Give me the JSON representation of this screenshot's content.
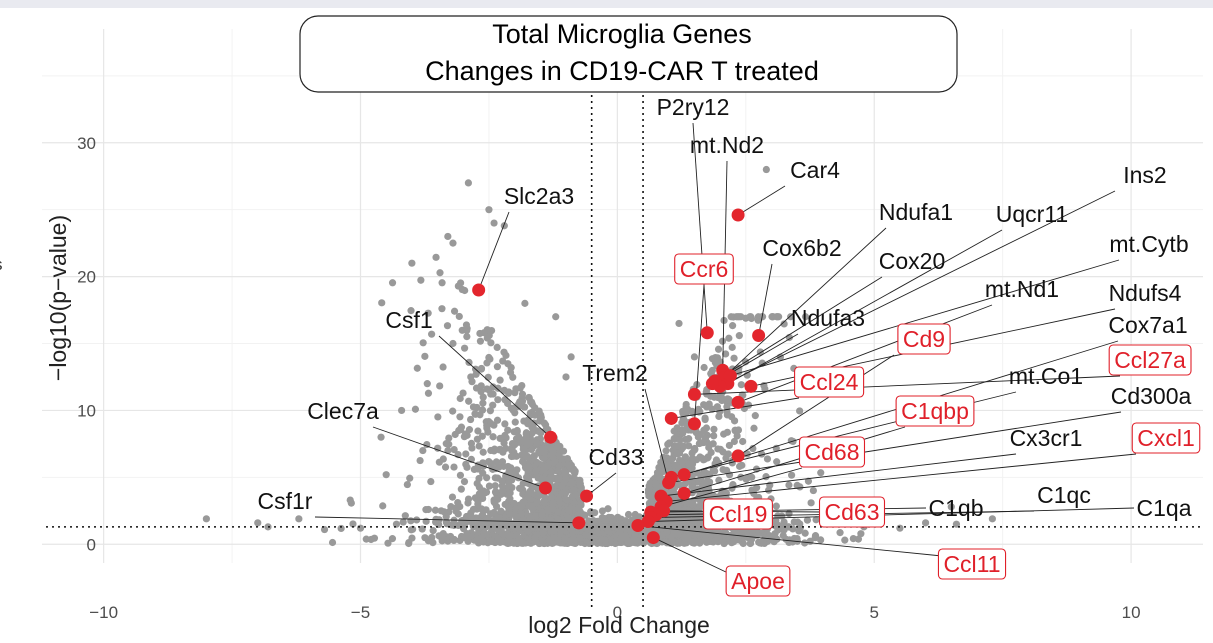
{
  "chart_data": {
    "type": "scatter",
    "title_line1": "Total Microglia Genes",
    "title_line2": "Changes in CD19-CAR T treated",
    "xlabel": "log2 Fold Change",
    "ylabel": "−log10(p−value)",
    "xlim": [
      -11.2,
      11.4
    ],
    "ylim": [
      -1.4,
      38.5
    ],
    "x_ticks": [
      -10,
      -5,
      0,
      5,
      10
    ],
    "x_tick_labels": [
      "−10",
      "−5",
      "0",
      "5",
      "10"
    ],
    "y_ticks": [
      0,
      10,
      20,
      30
    ],
    "y_tick_labels": [
      "0",
      "10",
      "20",
      "30"
    ],
    "grid": true,
    "thresholds": {
      "log2fc": [
        -0.5,
        0.5
      ],
      "neg_log10_p": 1.3
    },
    "colors": {
      "background_points": "#999999",
      "highlight_points": "#e3262d",
      "boxed_label": "#e0202a"
    },
    "left_edge_stub": "s",
    "highlighted_genes": [
      {
        "gene": "Slc2a3",
        "x": -2.7,
        "y": 19.0,
        "boxed": false
      },
      {
        "gene": "Csf1",
        "x": -1.3,
        "y": 8.0,
        "boxed": false
      },
      {
        "gene": "Clec7a",
        "x": -1.4,
        "y": 4.2,
        "boxed": false
      },
      {
        "gene": "Cd33",
        "x": -0.6,
        "y": 3.6,
        "boxed": false
      },
      {
        "gene": "Csf1r",
        "x": -0.75,
        "y": 1.6,
        "boxed": false
      },
      {
        "gene": "P2ry12",
        "x": 1.75,
        "y": 15.8,
        "boxed": false
      },
      {
        "gene": "mt.Nd2",
        "x": 2.05,
        "y": 13.0,
        "boxed": false
      },
      {
        "gene": "Car4",
        "x": 2.35,
        "y": 24.6,
        "boxed": false
      },
      {
        "gene": "Ccr6",
        "x": 1.5,
        "y": 9.0,
        "boxed": true
      },
      {
        "gene": "Cox6b2",
        "x": 2.75,
        "y": 15.6,
        "boxed": false
      },
      {
        "gene": "Ndufa1",
        "x": 2.05,
        "y": 12.4,
        "boxed": false
      },
      {
        "gene": "Uqcr11",
        "x": 2.15,
        "y": 12.0,
        "boxed": false
      },
      {
        "gene": "Ins2",
        "x": 2.0,
        "y": 11.8,
        "boxed": false
      },
      {
        "gene": "Cox20",
        "x": 1.9,
        "y": 12.2,
        "boxed": false
      },
      {
        "gene": "mt.Cytb",
        "x": 2.2,
        "y": 12.6,
        "boxed": false
      },
      {
        "gene": "Ndufa3",
        "x": 1.85,
        "y": 12.0,
        "boxed": false
      },
      {
        "gene": "mt.Nd1",
        "x": 2.35,
        "y": 10.6,
        "boxed": false
      },
      {
        "gene": "Ndufs4",
        "x": 2.6,
        "y": 11.8,
        "boxed": false
      },
      {
        "gene": "Cd9",
        "x": 2.35,
        "y": 6.6,
        "boxed": true
      },
      {
        "gene": "Cox7a1",
        "x": 1.3,
        "y": 5.2,
        "boxed": false
      },
      {
        "gene": "Ccl27a",
        "x": 1.5,
        "y": 11.2,
        "boxed": true
      },
      {
        "gene": "Ccl24",
        "x": 1.05,
        "y": 9.4,
        "boxed": true
      },
      {
        "gene": "mt.Co1",
        "x": 1.05,
        "y": 5.0,
        "boxed": false
      },
      {
        "gene": "Cd300a",
        "x": 1.0,
        "y": 4.6,
        "boxed": false
      },
      {
        "gene": "Trem2",
        "x": 1.0,
        "y": 4.6,
        "boxed": false
      },
      {
        "gene": "C1qbp",
        "x": 1.3,
        "y": 3.8,
        "boxed": true
      },
      {
        "gene": "Cx3cr1",
        "x": 0.85,
        "y": 3.6,
        "boxed": false
      },
      {
        "gene": "Cxcl1",
        "x": 0.95,
        "y": 3.2,
        "boxed": true
      },
      {
        "gene": "Cd68",
        "x": 0.85,
        "y": 2.8,
        "boxed": true
      },
      {
        "gene": "Cd63",
        "x": 0.9,
        "y": 2.5,
        "boxed": true
      },
      {
        "gene": "Ccl19",
        "x": 0.75,
        "y": 2.2,
        "boxed": true
      },
      {
        "gene": "C1qb",
        "x": 0.65,
        "y": 2.4,
        "boxed": false
      },
      {
        "gene": "C1qc",
        "x": 0.65,
        "y": 2.0,
        "boxed": false
      },
      {
        "gene": "C1qa",
        "x": 0.6,
        "y": 1.7,
        "boxed": false
      },
      {
        "gene": "Apoe",
        "x": 0.7,
        "y": 0.5,
        "boxed": true
      },
      {
        "gene": "Ccl11",
        "x": 0.4,
        "y": 1.4,
        "boxed": true
      }
    ]
  }
}
